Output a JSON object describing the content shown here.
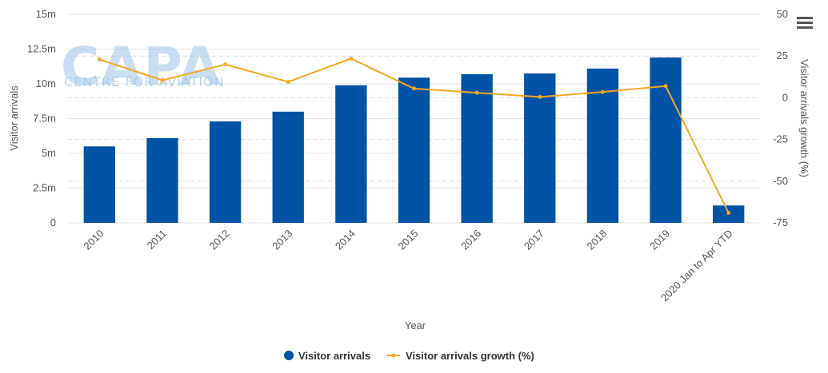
{
  "chart_data": {
    "type": "bar",
    "categories": [
      "2010",
      "2011",
      "2012",
      "2013",
      "2014",
      "2015",
      "2016",
      "2017",
      "2018",
      "2019",
      "2020 Jan to Apr YTD"
    ],
    "series": [
      {
        "name": "Visitor arrivals",
        "type": "bar",
        "axis": "left",
        "color": "#0052a5",
        "values": [
          5500000,
          6100000,
          7300000,
          8000000,
          9900000,
          10450000,
          10700000,
          10750000,
          11100000,
          11900000,
          1250000
        ]
      },
      {
        "name": "Visitor arrivals growth (%)",
        "type": "line",
        "axis": "right",
        "color": "#f5a623",
        "values": [
          23,
          10.5,
          20,
          9.5,
          23.5,
          5.5,
          3,
          0.5,
          3.5,
          7,
          -69
        ]
      }
    ],
    "xlabel": "Year",
    "ylabel_left": "Visitor arrivals",
    "ylabel_right": "Visitor arrivals growth (%)",
    "ylim_left": [
      0,
      15000000
    ],
    "ylim_right": [
      -75,
      50
    ],
    "yticks_left": [
      {
        "value": 0,
        "label": "0"
      },
      {
        "value": 2500000,
        "label": "2.5m"
      },
      {
        "value": 5000000,
        "label": "5m"
      },
      {
        "value": 7500000,
        "label": "7.5m"
      },
      {
        "value": 10000000,
        "label": "10m"
      },
      {
        "value": 12500000,
        "label": "12.5m"
      },
      {
        "value": 15000000,
        "label": "15m"
      }
    ],
    "yticks_right": [
      {
        "value": -75,
        "label": "-75"
      },
      {
        "value": -50,
        "label": "-50"
      },
      {
        "value": -25,
        "label": "-25"
      },
      {
        "value": 0,
        "label": "0"
      },
      {
        "value": 25,
        "label": "25"
      },
      {
        "value": 50,
        "label": "50"
      }
    ],
    "grid": true,
    "legend_position": "bottom-center"
  },
  "watermark": {
    "main": "CAPA",
    "sub": "CENTRE FOR AVIATION"
  },
  "menu_icon": "hamburger-menu-icon"
}
